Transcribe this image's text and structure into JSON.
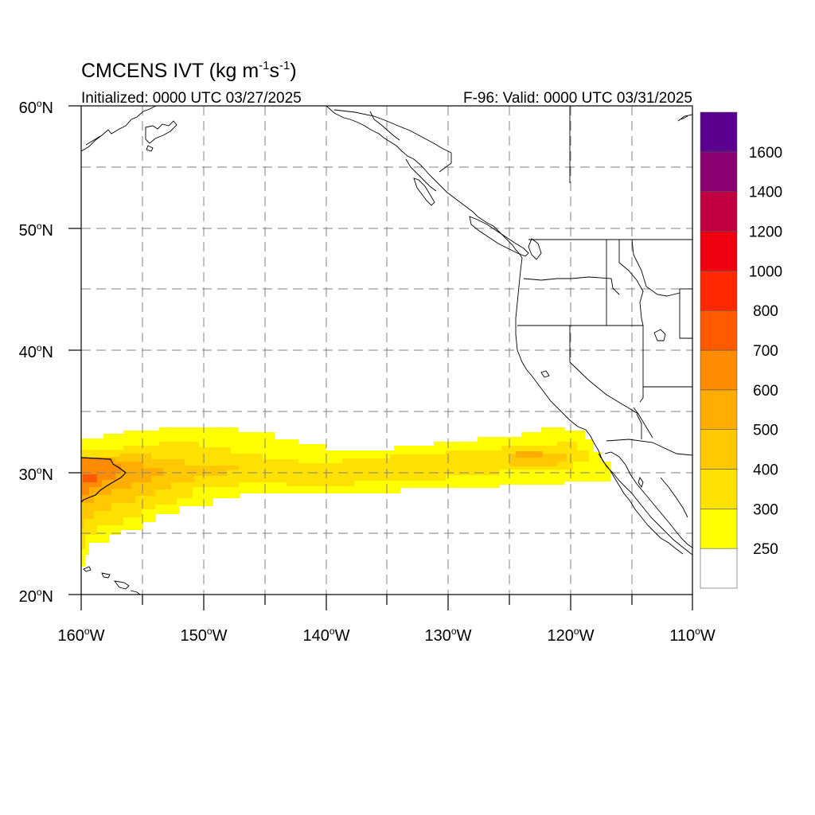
{
  "title": {
    "main": "CMCENS IVT (kg m",
    "sup1": "-1",
    "mid": "s",
    "sup2": "-1",
    "end": ")"
  },
  "init_label": "Initialized: 0000 UTC 03/27/2025",
  "valid_label": "F-96: Valid: 0000 UTC 03/31/2025",
  "lat_labels": [
    {
      "num": "60",
      "deg": "o",
      "dir": "N"
    },
    {
      "num": "50",
      "deg": "o",
      "dir": "N"
    },
    {
      "num": "40",
      "deg": "o",
      "dir": "N"
    },
    {
      "num": "30",
      "deg": "o",
      "dir": "N"
    },
    {
      "num": "20",
      "deg": "o",
      "dir": "N"
    }
  ],
  "lon_labels": [
    {
      "num": "160",
      "deg": "o",
      "dir": "W"
    },
    {
      "num": "150",
      "deg": "o",
      "dir": "W"
    },
    {
      "num": "140",
      "deg": "o",
      "dir": "W"
    },
    {
      "num": "130",
      "deg": "o",
      "dir": "W"
    },
    {
      "num": "120",
      "deg": "o",
      "dir": "W"
    },
    {
      "num": "110",
      "deg": "o",
      "dir": "W"
    }
  ],
  "colorbar": {
    "labels": [
      "250",
      "300",
      "400",
      "500",
      "600",
      "700",
      "800",
      "1000",
      "1200",
      "1400",
      "1600"
    ],
    "colors": [
      "#ffffff",
      "#ffff00",
      "#ffe100",
      "#ffc800",
      "#ffae00",
      "#ff8c00",
      "#ff5a00",
      "#ff2800",
      "#ee0010",
      "#c00040",
      "#8a0070",
      "#5a0090"
    ]
  },
  "map": {
    "lon_range": [
      -160,
      -110
    ],
    "lat_range": [
      20,
      60
    ],
    "gridline_spacing_deg": 5
  }
}
